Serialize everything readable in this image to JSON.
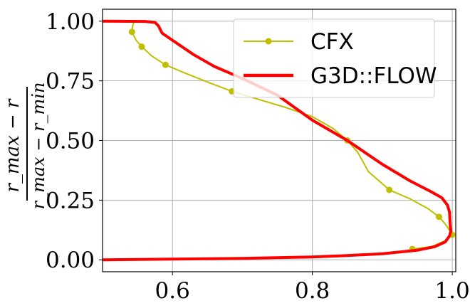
{
  "chart_data": {
    "type": "line",
    "title": "",
    "xlabel": "",
    "ylabel": {
      "numerator": "r_max − r",
      "denominator": "r_max − r_min"
    },
    "xlim": [
      0.5,
      1.005
    ],
    "ylim": [
      -0.05,
      1.05
    ],
    "x_ticks": [
      0.6,
      0.8,
      1.0
    ],
    "x_tick_labels": [
      "0.6",
      "0.8",
      "1.0"
    ],
    "y_ticks": [
      0.0,
      0.25,
      0.5,
      0.75,
      1.0
    ],
    "y_tick_labels": [
      "0.00",
      "0.25",
      "0.50",
      "0.75",
      "1.00"
    ],
    "grid": true,
    "legend_position": "top-right",
    "series": [
      {
        "name": "CFX",
        "color": "#bfbf00",
        "marker": "circle",
        "line": [
          [
            0.545,
            1.0
          ],
          [
            0.543,
            0.98
          ],
          [
            0.542,
            0.955
          ],
          [
            0.548,
            0.92
          ],
          [
            0.556,
            0.893
          ],
          [
            0.57,
            0.855
          ],
          [
            0.59,
            0.817
          ],
          [
            0.62,
            0.78
          ],
          [
            0.65,
            0.745
          ],
          [
            0.685,
            0.706
          ],
          [
            0.72,
            0.675
          ],
          [
            0.76,
            0.64
          ],
          [
            0.8,
            0.6
          ],
          [
            0.83,
            0.55
          ],
          [
            0.85,
            0.5
          ],
          [
            0.865,
            0.45
          ],
          [
            0.88,
            0.37
          ],
          [
            0.91,
            0.293
          ],
          [
            0.94,
            0.255
          ],
          [
            0.965,
            0.215
          ],
          [
            0.981,
            0.18
          ],
          [
            0.99,
            0.15
          ],
          [
            0.997,
            0.12
          ],
          [
            1.0,
            0.105
          ],
          [
            0.99,
            0.08
          ],
          [
            0.97,
            0.055
          ],
          [
            0.943,
            0.045
          ]
        ],
        "markers": [
          [
            0.542,
            0.955
          ],
          [
            0.556,
            0.893
          ],
          [
            0.59,
            0.817
          ],
          [
            0.685,
            0.706
          ],
          [
            0.85,
            0.5
          ],
          [
            0.91,
            0.293
          ],
          [
            0.981,
            0.18
          ],
          [
            1.0,
            0.105
          ],
          [
            0.943,
            0.045
          ]
        ]
      },
      {
        "name": "G3D::FLOW",
        "color": "#ff0000",
        "marker": "none",
        "line": [
          [
            0.5,
            1.0
          ],
          [
            0.56,
            0.999
          ],
          [
            0.575,
            0.995
          ],
          [
            0.58,
            0.98
          ],
          [
            0.585,
            0.95
          ],
          [
            0.6,
            0.92
          ],
          [
            0.63,
            0.86
          ],
          [
            0.66,
            0.81
          ],
          [
            0.7,
            0.76
          ],
          [
            0.75,
            0.69
          ],
          [
            0.8,
            0.585
          ],
          [
            0.85,
            0.5
          ],
          [
            0.9,
            0.4
          ],
          [
            0.94,
            0.33
          ],
          [
            0.97,
            0.285
          ],
          [
            0.985,
            0.26
          ],
          [
            0.993,
            0.23
          ],
          [
            0.996,
            0.2
          ],
          [
            0.997,
            0.15
          ],
          [
            0.998,
            0.12
          ],
          [
            0.996,
            0.1
          ],
          [
            0.99,
            0.075
          ],
          [
            0.975,
            0.055
          ],
          [
            0.95,
            0.04
          ],
          [
            0.9,
            0.025
          ],
          [
            0.85,
            0.018
          ],
          [
            0.8,
            0.012
          ],
          [
            0.7,
            0.006
          ],
          [
            0.6,
            0.003
          ],
          [
            0.5,
            0.0
          ]
        ]
      }
    ]
  }
}
